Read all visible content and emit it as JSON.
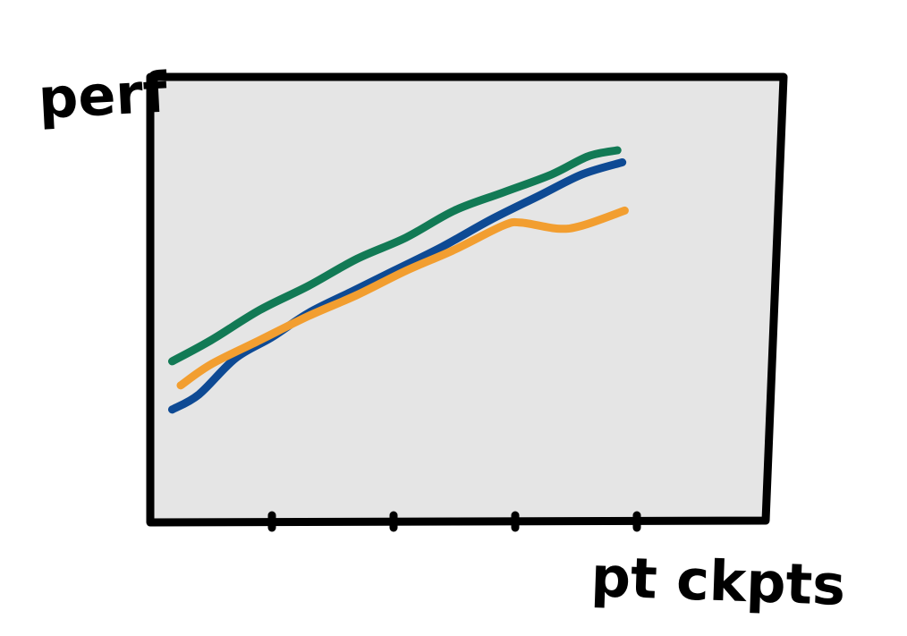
{
  "chart_data": {
    "type": "line",
    "ylabel": "perf",
    "xlabel": "pt ckpts",
    "x_ticks": [
      1,
      2,
      3,
      4
    ],
    "xlim": [
      0,
      4.5
    ],
    "ylim": [
      0,
      100
    ],
    "grid": false,
    "background": "#e5e5e5",
    "series": [
      {
        "color": "#127a55",
        "x": [
          0.18,
          0.5,
          0.9,
          1.3,
          1.7,
          2.1,
          2.5,
          2.9,
          3.3,
          3.6,
          3.84
        ],
        "y": [
          30,
          37,
          47,
          55,
          64,
          71,
          80,
          86,
          92,
          98,
          100
        ]
      },
      {
        "color": "#0e4a94",
        "x": [
          0.18,
          0.4,
          0.7,
          1.0,
          1.3,
          1.65,
          2.0,
          2.4,
          2.8,
          3.2,
          3.55,
          3.88
        ],
        "y": [
          14,
          19,
          31,
          38,
          46,
          53,
          60,
          68,
          77,
          85,
          92,
          96
        ]
      },
      {
        "color": "#f29e30",
        "x": [
          0.25,
          0.5,
          0.9,
          1.3,
          1.7,
          2.1,
          2.5,
          2.9,
          3.05,
          3.35,
          3.55,
          3.9
        ],
        "y": [
          22,
          29,
          37,
          45,
          52,
          60,
          67,
          75,
          76,
          74,
          75,
          80
        ]
      }
    ]
  }
}
